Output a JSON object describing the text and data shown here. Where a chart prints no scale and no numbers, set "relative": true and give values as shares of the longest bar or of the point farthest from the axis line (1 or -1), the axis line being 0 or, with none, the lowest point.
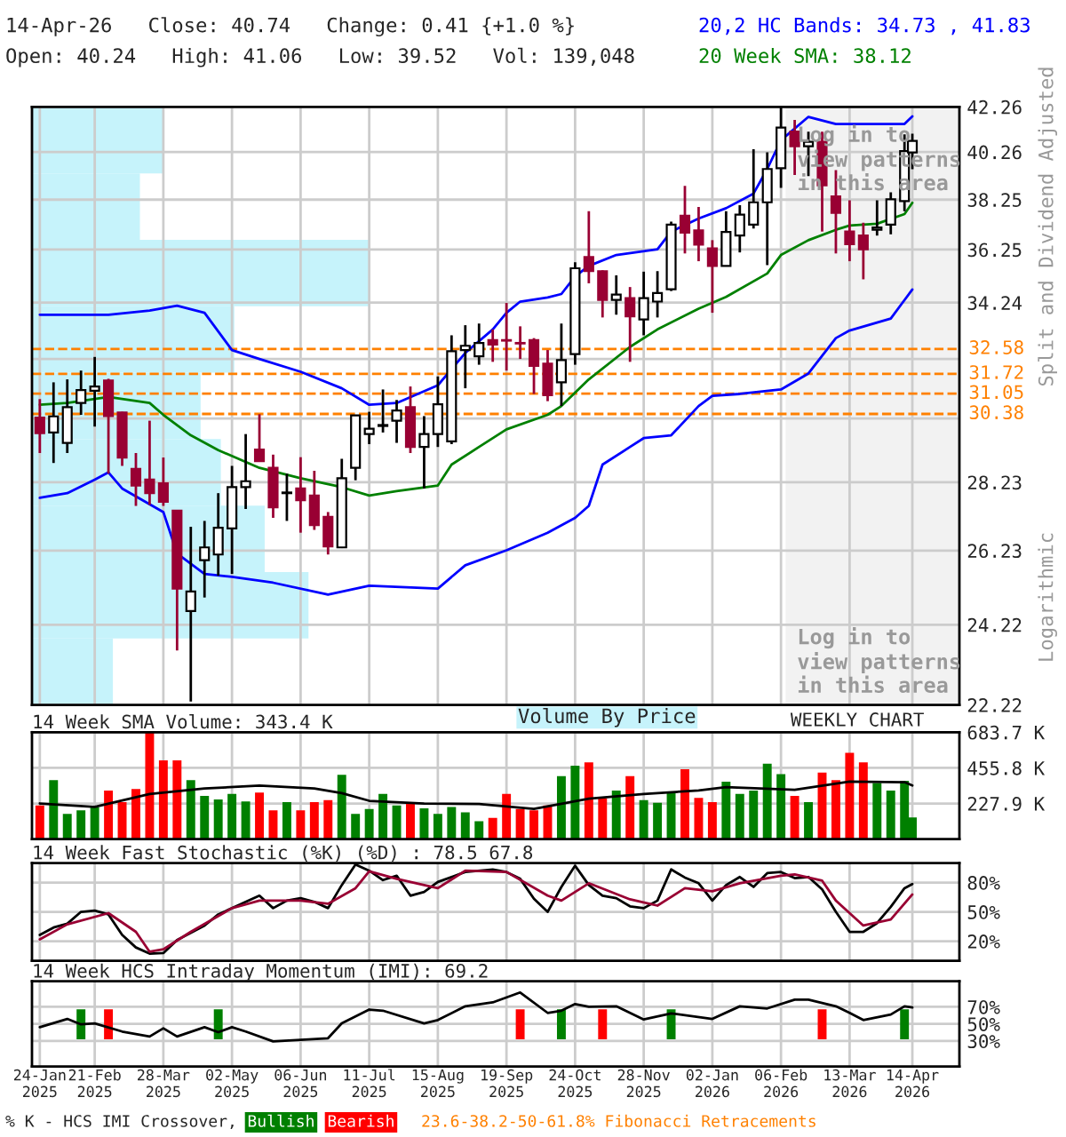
{
  "chart_data": [
    {
      "type": "candlestick",
      "title": "14-Apr-26   Close: 40.74   Change: 0.41 {+1.0 %}",
      "subtitle": "Open: 40.24   High: 41.06   Low: 39.52   Vol: 139,048",
      "x": [
        "2025-01-24",
        "2025-01-31",
        "2025-02-07",
        "2025-02-14",
        "2025-02-21",
        "2025-02-28",
        "2025-03-07",
        "2025-03-14",
        "2025-03-21",
        "2025-03-28",
        "2025-04-04",
        "2025-04-11",
        "2025-04-18",
        "2025-04-25",
        "2025-05-02",
        "2025-05-09",
        "2025-05-16",
        "2025-05-23",
        "2025-05-30",
        "2025-06-06",
        "2025-06-13",
        "2025-06-20",
        "2025-06-27",
        "2025-07-04",
        "2025-07-11",
        "2025-07-18",
        "2025-07-25",
        "2025-08-01",
        "2025-08-08",
        "2025-08-15",
        "2025-08-22",
        "2025-08-29",
        "2025-09-05",
        "2025-09-12",
        "2025-09-19",
        "2025-09-26",
        "2025-10-03",
        "2025-10-10",
        "2025-10-17",
        "2025-10-24",
        "2025-10-31",
        "2025-11-07",
        "2025-11-14",
        "2025-11-21",
        "2025-11-28",
        "2025-12-05",
        "2025-12-12",
        "2025-12-19",
        "2025-12-26",
        "2026-01-02",
        "2026-01-09",
        "2026-01-16",
        "2026-01-23",
        "2026-01-30",
        "2026-02-06",
        "2026-02-13",
        "2026-02-20",
        "2026-02-27",
        "2026-03-06",
        "2026-03-13",
        "2026-03-20",
        "2026-03-27",
        "2026-04-03",
        "2026-04-10",
        "2026-04-14"
      ],
      "ohlc": [
        [
          30.26,
          30.87,
          29.13,
          29.76
        ],
        [
          29.78,
          31.43,
          28.82,
          30.3
        ],
        [
          29.45,
          31.53,
          29.13,
          30.6
        ],
        [
          30.74,
          31.83,
          30.35,
          31.17
        ],
        [
          31.15,
          32.3,
          29.97,
          31.29
        ],
        [
          31.49,
          31.55,
          28.49,
          30.31
        ],
        [
          30.43,
          30.45,
          28.73,
          28.99
        ],
        [
          28.64,
          29.13,
          27.52,
          28.13
        ],
        [
          28.31,
          30.16,
          27.55,
          27.9
        ],
        [
          28.2,
          28.99,
          27.52,
          27.64
        ],
        [
          27.38,
          27.4,
          23.56,
          25.18
        ],
        [
          24.58,
          26.91,
          22.3,
          25.1
        ],
        [
          25.96,
          27.08,
          24.94,
          26.32
        ],
        [
          26.12,
          27.9,
          25.53,
          26.88
        ],
        [
          26.86,
          28.73,
          25.58,
          28.08
        ],
        [
          28.08,
          29.73,
          27.43,
          28.26
        ],
        [
          29.24,
          30.37,
          28.86,
          28.88
        ],
        [
          28.67,
          29.08,
          27.17,
          27.48
        ],
        [
          27.9,
          28.49,
          27.08,
          27.92
        ],
        [
          28.04,
          29.0,
          26.74,
          27.69
        ],
        [
          27.83,
          28.58,
          26.82,
          26.96
        ],
        [
          27.2,
          27.34,
          26.12,
          26.35
        ],
        [
          26.32,
          28.95,
          26.3,
          28.35
        ],
        [
          28.67,
          30.35,
          28.29,
          30.33
        ],
        [
          29.73,
          30.45,
          29.41,
          29.9
        ],
        [
          29.99,
          31.19,
          29.78,
          30.02
        ],
        [
          30.16,
          30.84,
          29.45,
          30.49
        ],
        [
          30.6,
          31.29,
          29.13,
          29.32
        ],
        [
          29.32,
          30.31,
          28.04,
          29.73
        ],
        [
          29.73,
          31.63,
          29.32,
          30.7
        ],
        [
          29.5,
          33.06,
          29.41,
          32.5
        ],
        [
          32.54,
          33.42,
          31.23,
          32.69
        ],
        [
          32.32,
          33.48,
          32.03,
          32.79
        ],
        [
          32.89,
          33.27,
          32.13,
          32.73
        ],
        [
          32.89,
          34.23,
          31.83,
          32.87
        ],
        [
          32.79,
          33.38,
          32.23,
          32.77
        ],
        [
          32.89,
          32.96,
          31.04,
          31.99
        ],
        [
          32.07,
          32.54,
          30.8,
          31.0
        ],
        [
          31.43,
          33.48,
          30.64,
          32.19
        ],
        [
          32.4,
          35.76,
          32.03,
          35.53
        ],
        [
          35.96,
          37.78,
          34.96,
          35.42
        ],
        [
          35.42,
          35.45,
          33.7,
          34.34
        ],
        [
          34.34,
          35.26,
          33.8,
          34.54
        ],
        [
          34.41,
          34.82,
          32.13,
          33.74
        ],
        [
          33.63,
          35.4,
          33.06,
          34.41
        ],
        [
          34.28,
          35.42,
          33.7,
          34.6
        ],
        [
          34.74,
          37.36,
          34.67,
          37.24
        ],
        [
          37.59,
          38.82,
          36.1,
          36.92
        ],
        [
          37.01,
          37.95,
          35.8,
          36.44
        ],
        [
          36.3,
          36.62,
          33.87,
          35.62
        ],
        [
          35.62,
          37.78,
          35.6,
          36.94
        ],
        [
          36.8,
          38.02,
          36.14,
          37.64
        ],
        [
          37.24,
          40.38,
          37.08,
          38.14
        ],
        [
          38.14,
          40.24,
          35.65,
          39.53
        ],
        [
          39.56,
          42.33,
          38.74,
          41.33
        ],
        [
          41.15,
          41.67,
          39.28,
          40.51
        ],
        [
          40.51,
          41.15,
          39.23,
          40.7
        ],
        [
          40.7,
          41.15,
          36.96,
          38.84
        ],
        [
          38.38,
          39.48,
          36.1,
          37.71
        ],
        [
          36.96,
          38.22,
          35.8,
          36.46
        ],
        [
          36.8,
          37.31,
          35.11,
          36.26
        ],
        [
          37.03,
          38.22,
          36.8,
          37.12
        ],
        [
          37.24,
          38.55,
          36.85,
          38.26
        ],
        [
          38.19,
          41.03,
          37.78,
          40.3
        ],
        [
          40.24,
          41.06,
          39.52,
          40.74
        ]
      ],
      "colors": [
        "#990033",
        "#ffffff",
        "#ffffff",
        "#ffffff",
        "#ffffff",
        "#990033",
        "#990033",
        "#990033",
        "#990033",
        "#990033",
        "#990033",
        "#ffffff",
        "#ffffff",
        "#ffffff",
        "#ffffff",
        "#ffffff",
        "#990033",
        "#990033",
        "#ffffff",
        "#990033",
        "#990033",
        "#990033",
        "#ffffff",
        "#ffffff",
        "#ffffff",
        "#ffffff",
        "#ffffff",
        "#990033",
        "#ffffff",
        "#ffffff",
        "#ffffff",
        "#ffffff",
        "#ffffff",
        "#990033",
        "#990033",
        "#990033",
        "#990033",
        "#990033",
        "#ffffff",
        "#ffffff",
        "#990033",
        "#990033",
        "#ffffff",
        "#990033",
        "#ffffff",
        "#ffffff",
        "#ffffff",
        "#990033",
        "#990033",
        "#990033",
        "#ffffff",
        "#ffffff",
        "#ffffff",
        "#ffffff",
        "#ffffff",
        "#990033",
        "#ffffff",
        "#990033",
        "#990033",
        "#990033",
        "#990033",
        "#ffffff",
        "#ffffff",
        "#ffffff",
        "#ffffff"
      ],
      "series": [
        {
          "type": "line",
          "name": "20,2 HC Bands: 34.73 , 41.83",
          "color": "#0000ff",
          "x": [
            "2025-01-24",
            "2025-02-28",
            "2025-03-21",
            "2025-04-04",
            "2025-04-18",
            "2025-05-02",
            "2025-05-16",
            "2025-06-06",
            "2025-06-27",
            "2025-07-11",
            "2025-07-25",
            "2025-08-15",
            "2025-08-29",
            "2025-09-12",
            "2025-09-19",
            "2025-09-26",
            "2025-10-10",
            "2025-10-17",
            "2025-10-24",
            "2025-10-31",
            "2025-11-14",
            "2025-12-05",
            "2025-12-12",
            "2025-12-26",
            "2026-01-09",
            "2026-01-23",
            "2026-01-30",
            "2026-02-06",
            "2026-02-20",
            "2026-03-06",
            "2026-04-10",
            "2026-04-14"
          ],
          "values": [
            33.8,
            33.8,
            33.95,
            34.13,
            33.87,
            32.54,
            32.23,
            31.79,
            31.23,
            30.68,
            30.74,
            31.33,
            32.44,
            33.27,
            33.87,
            34.28,
            34.43,
            34.56,
            35.22,
            35.62,
            36.04,
            36.26,
            36.96,
            37.48,
            37.9,
            38.5,
            39.53,
            40.77,
            41.81,
            41.49,
            41.49,
            41.83
          ]
        },
        {
          "type": "line",
          "color": "#0000ff",
          "x": [
            "2025-01-24",
            "2025-02-07",
            "2025-02-21",
            "2025-02-28",
            "2025-03-07",
            "2025-03-28",
            "2025-04-04",
            "2025-04-18",
            "2025-05-02",
            "2025-05-23",
            "2025-06-20",
            "2025-07-11",
            "2025-08-15",
            "2025-08-29",
            "2025-09-19",
            "2025-10-10",
            "2025-10-24",
            "2025-10-31",
            "2025-11-07",
            "2025-11-21",
            "2025-11-28",
            "2025-12-12",
            "2025-12-26",
            "2026-01-02",
            "2026-01-16",
            "2026-02-06",
            "2026-02-20",
            "2026-03-06",
            "2026-03-13",
            "2026-04-03",
            "2026-04-14"
          ],
          "values": [
            27.76,
            27.9,
            28.31,
            28.53,
            28.04,
            27.34,
            26.15,
            25.58,
            25.5,
            25.34,
            25.02,
            25.26,
            25.18,
            25.82,
            26.24,
            26.74,
            27.17,
            27.52,
            28.77,
            29.32,
            29.6,
            29.69,
            30.64,
            30.98,
            31.04,
            31.19,
            31.73,
            32.96,
            33.23,
            33.66,
            34.73
          ]
        },
        {
          "type": "line",
          "name": "20 Week SMA: 38.12",
          "color": "#008000",
          "x": [
            "2025-01-24",
            "2025-02-07",
            "2025-02-28",
            "2025-03-07",
            "2025-03-21",
            "2025-03-28",
            "2025-04-11",
            "2025-04-25",
            "2025-05-16",
            "2025-06-06",
            "2025-06-27",
            "2025-07-11",
            "2025-07-25",
            "2025-08-15",
            "2025-08-22",
            "2025-09-05",
            "2025-09-19",
            "2025-10-10",
            "2025-10-17",
            "2025-10-31",
            "2025-11-21",
            "2025-12-05",
            "2025-12-26",
            "2026-01-09",
            "2026-01-30",
            "2026-02-06",
            "2026-02-20",
            "2026-03-06",
            "2026-03-13",
            "2026-03-27",
            "2026-04-10",
            "2026-04-14"
          ],
          "values": [
            30.68,
            30.74,
            30.94,
            30.87,
            30.74,
            30.35,
            29.69,
            29.22,
            28.67,
            28.35,
            28.08,
            27.83,
            27.96,
            28.13,
            28.77,
            29.32,
            29.88,
            30.35,
            30.64,
            31.53,
            32.65,
            33.27,
            34.02,
            34.45,
            35.33,
            36.04,
            36.62,
            37.03,
            37.2,
            37.27,
            37.66,
            38.12
          ]
        }
      ],
      "log": true,
      "ylim": [
        22.22,
        42.26
      ],
      "yticks": [
        22.22,
        24.22,
        26.23,
        28.23,
        {
          "value": 30.23,
          "label": null
        },
        {
          "value": 32.23,
          "label": null
        },
        34.24,
        36.25,
        38.25,
        40.26,
        42.26
      ],
      "xlim": [
        "2025-01-20",
        "2026-05-08"
      ],
      "xticks": [
        {
          "value": "2025-01-24",
          "label": null
        },
        {
          "value": "2025-02-21",
          "label": null
        },
        {
          "value": "2025-03-28",
          "label": null
        },
        {
          "value": "2025-05-02",
          "label": null
        },
        {
          "value": "2025-06-06",
          "label": null
        },
        {
          "value": "2025-07-11",
          "label": null
        },
        {
          "value": "2025-08-15",
          "label": null
        },
        {
          "value": "2025-09-19",
          "label": null
        },
        {
          "value": "2025-10-24",
          "label": null
        },
        {
          "value": "2025-11-28",
          "label": null
        },
        {
          "value": "2026-01-02",
          "label": null
        },
        {
          "value": "2026-02-06",
          "label": null
        },
        {
          "value": "2026-03-13",
          "label": null
        },
        {
          "value": "2026-04-14",
          "label": null
        }
      ],
      "tick_labels": "y",
      "grid": true,
      "ref_lines": [
        {
          "axis": "y",
          "value": 32.58,
          "label": "32.58",
          "color": "#ff8000",
          "line_style": "dashed"
        },
        {
          "axis": "y",
          "value": 31.72,
          "label": "31.72",
          "color": "#ff8000",
          "line_style": "dashed"
        },
        {
          "axis": "y",
          "value": 31.05,
          "label": "31.05",
          "color": "#ff8000",
          "line_style": "dashed"
        },
        {
          "axis": "y",
          "value": 30.38,
          "label": "30.38",
          "color": "#ff8000",
          "line_style": "dashed"
        }
      ],
      "bands": [
        {
          "axis": "x",
          "from": "2026-02-09",
          "to": "2026-05-08",
          "color": "#f2f2f2"
        }
      ],
      "annotations": [
        "Log in to\nview patterns\nin this area",
        "Log in to\nview patterns\nin this area",
        "Split and Dividend Adjusted",
        "Logarithmic",
        "23.6-38.2-50-61.8% Fibonacci Retracements",
        "Volume By Price"
      ]
    },
    {
      "type": "bar",
      "orientation": "horizontal",
      "relative": true,
      "categories": [
        null,
        null,
        null,
        null,
        null,
        null,
        null,
        null,
        null
      ],
      "values": [
        0.39,
        0.32,
        1,
        0.6,
        0.5,
        0.56,
        0.69,
        0.82,
        0.24
      ],
      "color": "#c6f3fb"
    },
    {
      "type": "bar",
      "title": "14 Week SMA Volume: 343.4 K",
      "x": [
        "2025-01-24",
        "2025-01-31",
        "2025-02-07",
        "2025-02-14",
        "2025-02-21",
        "2025-02-28",
        "2025-03-07",
        "2025-03-14",
        "2025-03-21",
        "2025-03-28",
        "2025-04-04",
        "2025-04-11",
        "2025-04-18",
        "2025-04-25",
        "2025-05-02",
        "2025-05-09",
        "2025-05-16",
        "2025-05-23",
        "2025-05-30",
        "2025-06-06",
        "2025-06-13",
        "2025-06-20",
        "2025-06-27",
        "2025-07-04",
        "2025-07-11",
        "2025-07-18",
        "2025-07-25",
        "2025-08-01",
        "2025-08-08",
        "2025-08-15",
        "2025-08-22",
        "2025-08-29",
        "2025-09-05",
        "2025-09-12",
        "2025-09-19",
        "2025-09-26",
        "2025-10-03",
        "2025-10-10",
        "2025-10-17",
        "2025-10-24",
        "2025-10-31",
        "2025-11-07",
        "2025-11-14",
        "2025-11-21",
        "2025-11-28",
        "2025-12-05",
        "2025-12-12",
        "2025-12-19",
        "2025-12-26",
        "2026-01-02",
        "2026-01-09",
        "2026-01-16",
        "2026-01-23",
        "2026-01-30",
        "2026-02-06",
        "2026-02-13",
        "2026-02-20",
        "2026-02-27",
        "2026-03-06",
        "2026-03-13",
        "2026-03-20",
        "2026-03-27",
        "2026-04-03",
        "2026-04-10",
        "2026-04-14"
      ],
      "series": [
        {
          "type": "bar",
          "values": [
            215,
            377,
            162,
            184,
            202,
            311,
            237,
            320,
            680,
            504,
            504,
            377,
            276,
            254,
            289,
            241,
            298,
            184,
            237,
            184,
            237,
            250,
            412,
            162,
            193,
            289,
            215,
            232,
            197,
            162,
            206,
            171,
            114,
            136,
            289,
            193,
            184,
            215,
            403,
            469,
            491,
            259,
            311,
            403,
            250,
            232,
            294,
            447,
            263,
            237,
            368,
            289,
            311,
            482,
            416,
            276,
            237,
            425,
            377,
            552,
            491,
            359,
            311,
            373,
            139
          ],
          "colors": [
            "#ff0000",
            "#008000",
            "#008000",
            "#008000",
            "#008000",
            "#ff0000",
            "#ff0000",
            "#ff0000",
            "#ff0000",
            "#ff0000",
            "#ff0000",
            "#008000",
            "#008000",
            "#008000",
            "#008000",
            "#008000",
            "#ff0000",
            "#ff0000",
            "#008000",
            "#ff0000",
            "#ff0000",
            "#ff0000",
            "#008000",
            "#008000",
            "#008000",
            "#008000",
            "#008000",
            "#ff0000",
            "#008000",
            "#008000",
            "#008000",
            "#008000",
            "#008000",
            "#ff0000",
            "#ff0000",
            "#ff0000",
            "#ff0000",
            "#ff0000",
            "#008000",
            "#008000",
            "#ff0000",
            "#ff0000",
            "#008000",
            "#ff0000",
            "#008000",
            "#008000",
            "#008000",
            "#ff0000",
            "#ff0000",
            "#ff0000",
            "#008000",
            "#008000",
            "#008000",
            "#008000",
            "#008000",
            "#ff0000",
            "#008000",
            "#ff0000",
            "#ff0000",
            "#ff0000",
            "#ff0000",
            "#008000",
            "#008000",
            "#008000",
            "#008000"
          ]
        },
        {
          "type": "line",
          "color": "#000000",
          "x": [
            "2025-01-24",
            "2025-02-21",
            "2025-03-21",
            "2025-04-18",
            "2025-05-16",
            "2025-06-13",
            "2025-06-27",
            "2025-07-11",
            "2025-08-08",
            "2025-09-05",
            "2025-10-03",
            "2025-10-31",
            "2025-11-28",
            "2025-12-26",
            "2026-01-09",
            "2026-02-13",
            "2026-03-13",
            "2026-04-10",
            "2026-04-14"
          ],
          "values": [
            228,
            206,
            289,
            324,
            342,
            324,
            294,
            245,
            228,
            224,
            193,
            259,
            289,
            311,
            333,
            316,
            368,
            364,
            343.4
          ]
        }
      ],
      "ylim": [
        0,
        683.7
      ],
      "yticks": [
        {
          "value": 227.9,
          "label": "227.9 K"
        },
        {
          "value": 455.8,
          "label": "455.8 K"
        },
        {
          "value": 683.7,
          "label": "683.7 K"
        }
      ],
      "xlim": [
        "2025-01-20",
        "2026-05-08"
      ],
      "xticks": [
        {
          "value": "2025-01-24",
          "label": null
        },
        {
          "value": "2025-02-21",
          "label": null
        },
        {
          "value": "2025-03-28",
          "label": null
        },
        {
          "value": "2025-05-02",
          "label": null
        },
        {
          "value": "2025-06-06",
          "label": null
        },
        {
          "value": "2025-07-11",
          "label": null
        },
        {
          "value": "2025-08-15",
          "label": null
        },
        {
          "value": "2025-09-19",
          "label": null
        },
        {
          "value": "2025-10-24",
          "label": null
        },
        {
          "value": "2025-11-28",
          "label": null
        },
        {
          "value": "2026-01-02",
          "label": null
        },
        {
          "value": "2026-02-06",
          "label": null
        },
        {
          "value": "2026-03-13",
          "label": null
        },
        {
          "value": "2026-04-14",
          "label": null
        }
      ],
      "tick_labels": "y",
      "grid": true,
      "annotations": [
        "WEEKLY CHART"
      ]
    },
    {
      "type": "line",
      "title": "14 Week Fast Stochastic (%K) (%D) : 78.5 67.8",
      "series": [
        {
          "color": "#000000",
          "x": [
            "2025-01-24",
            "2025-01-31",
            "2025-02-07",
            "2025-02-14",
            "2025-02-21",
            "2025-02-28",
            "2025-03-07",
            "2025-03-14",
            "2025-03-21",
            "2025-03-28",
            "2025-04-04",
            "2025-04-18",
            "2025-04-25",
            "2025-05-09",
            "2025-05-16",
            "2025-05-23",
            "2025-05-30",
            "2025-06-06",
            "2025-06-13",
            "2025-06-20",
            "2025-06-27",
            "2025-07-04",
            "2025-07-11",
            "2025-07-18",
            "2025-07-25",
            "2025-08-01",
            "2025-08-08",
            "2025-08-15",
            "2025-08-29",
            "2025-09-12",
            "2025-09-19",
            "2025-09-26",
            "2025-10-03",
            "2025-10-10",
            "2025-10-17",
            "2025-10-24",
            "2025-10-31",
            "2025-11-07",
            "2025-11-14",
            "2025-11-21",
            "2025-11-28",
            "2025-12-05",
            "2025-12-12",
            "2025-12-19",
            "2025-12-26",
            "2026-01-02",
            "2026-01-09",
            "2026-01-16",
            "2026-01-23",
            "2026-01-30",
            "2026-02-06",
            "2026-02-13",
            "2026-02-20",
            "2026-02-27",
            "2026-03-06",
            "2026-03-13",
            "2026-03-20",
            "2026-03-27",
            "2026-04-03",
            "2026-04-10",
            "2026-04-14"
          ],
          "values": [
            26.4,
            34.0,
            37.9,
            50,
            51.3,
            47.4,
            26.4,
            13.6,
            7.3,
            7.9,
            21.3,
            36.0,
            47.4,
            60.2,
            66.6,
            53.8,
            61.5,
            64.0,
            60.2,
            53.8,
            77.4,
            98.5,
            92.1,
            82.5,
            87.0,
            66.6,
            70.4,
            80.6,
            90.8,
            93.4,
            90.8,
            83.8,
            63.4,
            50,
            75.5,
            97.2,
            77.4,
            66.6,
            64.0,
            55.7,
            53.8,
            61.5,
            93.4,
            85.1,
            79.3,
            61.5,
            77.4,
            85.7,
            75.5,
            89.6,
            90.8,
            84.5,
            85.7,
            73.0,
            50,
            29.6,
            29.6,
            38.5,
            55.1,
            74.2,
            78.5
          ]
        },
        {
          "color": "#990033",
          "x": [
            "2025-01-24",
            "2025-02-07",
            "2025-02-28",
            "2025-03-14",
            "2025-03-21",
            "2025-03-28",
            "2025-04-11",
            "2025-05-02",
            "2025-05-16",
            "2025-06-06",
            "2025-06-20",
            "2025-07-04",
            "2025-07-11",
            "2025-07-25",
            "2025-08-15",
            "2025-08-29",
            "2025-09-19",
            "2025-10-10",
            "2025-10-17",
            "2025-10-31",
            "2025-11-21",
            "2025-12-05",
            "2025-12-19",
            "2026-01-02",
            "2026-01-16",
            "2026-02-06",
            "2026-02-13",
            "2026-02-27",
            "2026-03-06",
            "2026-03-20",
            "2026-04-03",
            "2026-04-14"
          ],
          "values": [
            21.9,
            37.2,
            48.7,
            29.6,
            9.2,
            11.7,
            29.6,
            53.8,
            61.5,
            61.5,
            58.3,
            74.2,
            91.5,
            83.8,
            74.2,
            92.1,
            90.8,
            66.6,
            61.5,
            79.3,
            62.8,
            56.4,
            74.2,
            71.1,
            79.3,
            87.0,
            88.3,
            81.9,
            61.5,
            36.0,
            42.3,
            67.8
          ]
        }
      ],
      "ylim": [
        0,
        100
      ],
      "yticks": [
        {
          "value": 20,
          "label": "20%"
        },
        {
          "value": 50,
          "label": "50%"
        },
        {
          "value": 80,
          "label": "80%"
        }
      ],
      "xlim": [
        "2025-01-20",
        "2026-05-08"
      ],
      "xticks": [
        {
          "value": "2025-01-24",
          "label": null
        },
        {
          "value": "2025-02-21",
          "label": null
        },
        {
          "value": "2025-03-28",
          "label": null
        },
        {
          "value": "2025-05-02",
          "label": null
        },
        {
          "value": "2025-06-06",
          "label": null
        },
        {
          "value": "2025-07-11",
          "label": null
        },
        {
          "value": "2025-08-15",
          "label": null
        },
        {
          "value": "2025-09-19",
          "label": null
        },
        {
          "value": "2025-10-24",
          "label": null
        },
        {
          "value": "2025-11-28",
          "label": null
        },
        {
          "value": "2026-01-02",
          "label": null
        },
        {
          "value": "2026-02-06",
          "label": null
        },
        {
          "value": "2026-03-13",
          "label": null
        },
        {
          "value": "2026-04-14",
          "label": null
        }
      ],
      "tick_labels": "y",
      "grid": true
    },
    {
      "type": "line",
      "title": "14 Week HCS Intraday Momentum (IMI): 69.2",
      "legend": "bottom",
      "legend_title": "% K - HCS IMI Crossover,",
      "series": [
        {
          "type": "bar",
          "name": "Bullish",
          "color": "#008000",
          "x": [
            "2025-02-14",
            "2025-04-25",
            "2025-10-17",
            "2025-12-12",
            "2026-04-10"
          ],
          "base": [
            32,
            32,
            32,
            32,
            32
          ],
          "values": [
            35,
            35,
            35,
            35,
            35
          ]
        },
        {
          "type": "bar",
          "name": "Bearish",
          "color": "#ff0000",
          "x": [
            "2025-02-28",
            "2025-09-26",
            "2025-11-07",
            "2026-02-27"
          ],
          "base": [
            32,
            32,
            32,
            32
          ],
          "values": [
            35,
            35,
            35,
            35
          ]
        },
        {
          "color": "#000000",
          "x": [
            "2025-01-24",
            "2025-02-07",
            "2025-02-14",
            "2025-02-21",
            "2025-03-07",
            "2025-03-21",
            "2025-03-28",
            "2025-04-04",
            "2025-04-18",
            "2025-04-25",
            "2025-05-02",
            "2025-05-09",
            "2025-05-23",
            "2025-06-06",
            "2025-06-20",
            "2025-06-27",
            "2025-07-11",
            "2025-07-18",
            "2025-08-08",
            "2025-08-15",
            "2025-08-29",
            "2025-09-12",
            "2025-09-26",
            "2025-10-10",
            "2025-10-17",
            "2025-10-24",
            "2025-10-31",
            "2025-11-14",
            "2025-11-28",
            "2025-12-12",
            "2026-01-02",
            "2026-01-16",
            "2026-01-30",
            "2026-02-13",
            "2026-02-20",
            "2026-03-06",
            "2026-03-13",
            "2026-03-20",
            "2026-04-03",
            "2026-04-10",
            "2026-04-14"
          ],
          "values": [
            46.1,
            55.8,
            49.4,
            50.6,
            41,
            35.2,
            44.8,
            35.2,
            46.1,
            40.3,
            46.1,
            41,
            29.4,
            31.3,
            33.2,
            50.6,
            66.8,
            65.5,
            50.6,
            54.5,
            70.6,
            75.2,
            86.8,
            62.9,
            65.5,
            73.2,
            70,
            70.6,
            55.2,
            62.3,
            55.8,
            70.6,
            68.1,
            78.4,
            78.4,
            70.6,
            62.9,
            54.5,
            61,
            70.6,
            69.2
          ]
        }
      ],
      "ylim": [
        0,
        100
      ],
      "yticks": [
        {
          "value": 30,
          "label": "30%"
        },
        {
          "value": 50,
          "label": "50%"
        },
        {
          "value": 70,
          "label": "70%"
        }
      ],
      "xlim": [
        "2025-01-20",
        "2026-05-08"
      ],
      "xticks": [
        {
          "value": "2025-01-24",
          "label": "24-Jan\n2025"
        },
        {
          "value": "2025-02-21",
          "label": "21-Feb\n2025"
        },
        {
          "value": "2025-03-28",
          "label": "28-Mar\n2025"
        },
        {
          "value": "2025-05-02",
          "label": "02-May\n2025"
        },
        {
          "value": "2025-06-06",
          "label": "06-Jun\n2025"
        },
        {
          "value": "2025-07-11",
          "label": "11-Jul\n2025"
        },
        {
          "value": "2025-08-15",
          "label": "15-Aug\n2025"
        },
        {
          "value": "2025-09-19",
          "label": "19-Sep\n2025"
        },
        {
          "value": "2025-10-24",
          "label": "24-Oct\n2025"
        },
        {
          "value": "2025-11-28",
          "label": "28-Nov\n2025"
        },
        {
          "value": "2026-01-02",
          "label": "02-Jan\n2026"
        },
        {
          "value": "2026-02-06",
          "label": "06-Feb\n2026"
        },
        {
          "value": "2026-03-13",
          "label": "13-Mar\n2026"
        },
        {
          "value": "2026-04-14",
          "label": "14-Apr\n2026"
        }
      ],
      "grid": true
    }
  ]
}
